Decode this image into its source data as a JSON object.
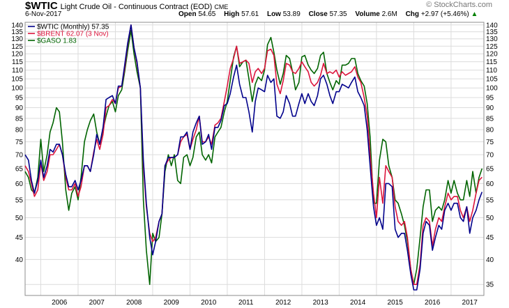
{
  "header": {
    "symbol": "$WTIC",
    "subtitle": "Light Crude Oil - Continuous Contract (EOD)",
    "exchange": "CME",
    "date": "6-Nov-2017",
    "open_label": "Open",
    "open_value": "54.65",
    "high_label": "High",
    "high_value": "57.61",
    "low_label": "Low",
    "low_value": "53.89",
    "close_label": "Close",
    "close_value": "57.35",
    "volume_label": "Volume",
    "volume_value": "2.6M",
    "chg_label": "Chg",
    "chg_value": "+2.97 (+5.46%)",
    "chg_arrow": "▲",
    "brand": "StockCharts.com",
    "brand_symbol": "©"
  },
  "colors": {
    "wtic": "#00008b",
    "brent": "#dc143c",
    "gaso": "#006400",
    "grid": "#dcdcdc",
    "frame": "#8c8c8c",
    "chg_arrow": "#008000"
  },
  "chart_data": {
    "type": "line",
    "scale": "log",
    "ylim": [
      33,
      142
    ],
    "grid": true,
    "legend_position": "top-left",
    "left_ticks": [
      40,
      45,
      50,
      55,
      60,
      65,
      70,
      75,
      80,
      85,
      90,
      95,
      100,
      105,
      110,
      115,
      120,
      125,
      130,
      135,
      140
    ],
    "right_ticks": [
      35,
      40,
      45,
      50,
      55,
      60,
      65,
      70,
      75,
      80,
      85,
      90,
      95,
      100,
      105,
      110,
      115,
      120,
      125,
      130,
      135,
      140
    ],
    "x_labels": [
      "2006",
      "2007",
      "2008",
      "2009",
      "2010",
      "2011",
      "2012",
      "2013",
      "2014",
      "2015",
      "2016",
      "2017"
    ],
    "x_range": [
      2005.58,
      2017.88
    ],
    "series": [
      {
        "name": "$WTIC (Monthly) 57.35",
        "color": "#00008b",
        "x": [
          2005.58,
          2005.67,
          2005.75,
          2005.83,
          2005.92,
          2006.0,
          2006.08,
          2006.17,
          2006.25,
          2006.33,
          2006.42,
          2006.5,
          2006.58,
          2006.67,
          2006.75,
          2006.83,
          2006.92,
          2007.0,
          2007.08,
          2007.17,
          2007.25,
          2007.33,
          2007.42,
          2007.5,
          2007.58,
          2007.67,
          2007.75,
          2007.83,
          2007.92,
          2008.0,
          2008.08,
          2008.17,
          2008.25,
          2008.33,
          2008.42,
          2008.5,
          2008.58,
          2008.67,
          2008.75,
          2008.83,
          2008.92,
          2009.0,
          2009.08,
          2009.17,
          2009.25,
          2009.33,
          2009.42,
          2009.5,
          2009.58,
          2009.67,
          2009.75,
          2009.83,
          2009.92,
          2010.0,
          2010.08,
          2010.17,
          2010.25,
          2010.33,
          2010.42,
          2010.5,
          2010.58,
          2010.67,
          2010.75,
          2010.83,
          2010.92,
          2011.0,
          2011.08,
          2011.17,
          2011.25,
          2011.33,
          2011.42,
          2011.5,
          2011.58,
          2011.67,
          2011.75,
          2011.83,
          2011.92,
          2012.0,
          2012.08,
          2012.17,
          2012.25,
          2012.33,
          2012.42,
          2012.5,
          2012.58,
          2012.67,
          2012.75,
          2012.83,
          2012.92,
          2013.0,
          2013.08,
          2013.17,
          2013.25,
          2013.33,
          2013.42,
          2013.5,
          2013.58,
          2013.67,
          2013.75,
          2013.83,
          2013.92,
          2014.0,
          2014.08,
          2014.17,
          2014.25,
          2014.33,
          2014.42,
          2014.5,
          2014.58,
          2014.67,
          2014.75,
          2014.83,
          2014.92,
          2015.0,
          2015.08,
          2015.17,
          2015.25,
          2015.33,
          2015.42,
          2015.5,
          2015.58,
          2015.67,
          2015.75,
          2015.83,
          2015.92,
          2016.0,
          2016.08,
          2016.17,
          2016.25,
          2016.33,
          2016.42,
          2016.5,
          2016.58,
          2016.67,
          2016.75,
          2016.83,
          2016.92,
          2017.0,
          2017.08,
          2017.17,
          2017.25,
          2017.33,
          2017.42,
          2017.5,
          2017.58,
          2017.67,
          2017.75,
          2017.83
        ],
        "values": [
          70.0,
          68.0,
          61.0,
          57.0,
          61.0,
          68.0,
          62.0,
          66.0,
          72.0,
          71.0,
          74.0,
          74.0,
          70.0,
          63.0,
          59.0,
          59.0,
          61.0,
          58.0,
          61.0,
          66.0,
          66.0,
          64.0,
          70.0,
          78.0,
          74.0,
          81.0,
          94.0,
          95.0,
          96.0,
          92.0,
          101.0,
          101.0,
          113.0,
          127.0,
          140.0,
          124.0,
          115.0,
          100.0,
          68.0,
          54.0,
          45.0,
          41.0,
          44.0,
          49.0,
          51.0,
          66.0,
          69.0,
          69.0,
          69.0,
          70.0,
          77.0,
          77.0,
          79.0,
          72.0,
          79.0,
          83.0,
          86.0,
          74.0,
          75.0,
          78.0,
          72.0,
          81.0,
          81.0,
          84.0,
          91.0,
          92.0,
          97.0,
          106.0,
          113.0,
          102.0,
          95.0,
          95.0,
          88.0,
          79.0,
          93.0,
          100.0,
          99.0,
          98.0,
          107.0,
          103.0,
          105.0,
          86.0,
          85.0,
          88.0,
          96.0,
          92.0,
          86.0,
          86.0,
          92.0,
          97.0,
          92.0,
          97.0,
          93.0,
          91.0,
          96.0,
          105.0,
          107.0,
          102.0,
          96.0,
          92.0,
          98.0,
          98.0,
          102.0,
          101.0,
          100.0,
          103.0,
          106.0,
          98.0,
          95.0,
          91.0,
          80.0,
          66.0,
          53.0,
          48.0,
          50.0,
          47.0,
          60.0,
          60.0,
          59.0,
          47.0,
          45.0,
          46.0,
          46.0,
          42.0,
          37.0,
          34.0,
          34.0,
          38.0,
          46.0,
          49.0,
          48.0,
          42.0,
          45.0,
          48.0,
          47.0,
          52.0,
          54.0,
          52.0,
          54.0,
          54.0,
          50.0,
          49.0,
          53.0,
          46.0,
          50.0,
          52.0,
          55.0,
          57.35
        ]
      },
      {
        "name": "$BRENT 62.07 (3 Nov)",
        "color": "#dc143c",
        "x": [
          2005.58,
          2005.67,
          2005.75,
          2005.83,
          2005.92,
          2006.0,
          2006.08,
          2006.17,
          2006.25,
          2006.33,
          2006.42,
          2006.5,
          2006.58,
          2006.67,
          2006.75,
          2006.83,
          2006.92,
          2007.0,
          2007.08,
          2007.17,
          2007.25,
          2007.33,
          2007.42,
          2007.5,
          2007.58,
          2007.67,
          2007.75,
          2007.83,
          2007.92,
          2008.0,
          2008.08,
          2008.17,
          2008.25,
          2008.33,
          2008.42,
          2008.5,
          2008.58,
          2008.67,
          2008.75,
          2008.83,
          2008.92,
          2009.0,
          2009.08,
          2009.17,
          2009.25,
          2009.33,
          2009.42,
          2009.5,
          2009.58,
          2009.67,
          2009.75,
          2009.83,
          2009.92,
          2010.0,
          2010.08,
          2010.17,
          2010.25,
          2010.33,
          2010.42,
          2010.5,
          2010.58,
          2010.67,
          2010.75,
          2010.83,
          2010.92,
          2011.0,
          2011.08,
          2011.17,
          2011.25,
          2011.33,
          2011.42,
          2011.5,
          2011.58,
          2011.67,
          2011.75,
          2011.83,
          2011.92,
          2012.0,
          2012.08,
          2012.17,
          2012.25,
          2012.33,
          2012.42,
          2012.5,
          2012.58,
          2012.67,
          2012.75,
          2012.83,
          2012.92,
          2013.0,
          2013.08,
          2013.17,
          2013.25,
          2013.33,
          2013.42,
          2013.5,
          2013.58,
          2013.67,
          2013.75,
          2013.83,
          2013.92,
          2014.0,
          2014.08,
          2014.17,
          2014.25,
          2014.33,
          2014.42,
          2014.5,
          2014.58,
          2014.67,
          2014.75,
          2014.83,
          2014.92,
          2015.0,
          2015.08,
          2015.17,
          2015.25,
          2015.33,
          2015.42,
          2015.5,
          2015.58,
          2015.67,
          2015.75,
          2015.83,
          2015.92,
          2016.0,
          2016.08,
          2016.17,
          2016.25,
          2016.33,
          2016.42,
          2016.5,
          2016.58,
          2016.67,
          2016.75,
          2016.83,
          2016.92,
          2017.0,
          2017.08,
          2017.17,
          2017.25,
          2017.33,
          2017.42,
          2017.5,
          2017.58,
          2017.67,
          2017.75,
          2017.83
        ],
        "values": [
          66.0,
          64.0,
          60.0,
          56.0,
          58.0,
          67.0,
          61.0,
          64.0,
          70.0,
          70.0,
          72.0,
          74.0,
          70.0,
          62.0,
          58.0,
          58.0,
          60.0,
          56.0,
          59.0,
          66.0,
          66.0,
          64.0,
          71.0,
          76.0,
          72.0,
          78.0,
          90.0,
          91.0,
          94.0,
          92.0,
          100.0,
          101.0,
          111.0,
          126.0,
          140.0,
          124.0,
          114.0,
          100.0,
          66.0,
          53.0,
          46.0,
          44.0,
          45.0,
          49.0,
          51.0,
          66.0,
          68.0,
          69.0,
          69.0,
          70.0,
          75.0,
          77.0,
          78.0,
          72.0,
          76.0,
          80.0,
          86.0,
          75.0,
          75.0,
          77.0,
          74.0,
          82.0,
          83.0,
          85.0,
          93.0,
          101.0,
          111.0,
          117.0,
          125.0,
          114.0,
          115.0,
          116.0,
          114.0,
          103.0,
          109.0,
          111.0,
          108.0,
          111.0,
          122.0,
          123.0,
          119.0,
          102.0,
          97.0,
          104.0,
          114.0,
          113.0,
          109.0,
          108.0,
          111.0,
          115.0,
          112.0,
          109.0,
          103.0,
          101.0,
          103.0,
          107.0,
          114.0,
          108.0,
          109.0,
          108.0,
          110.0,
          106.0,
          109.0,
          107.0,
          108.0,
          109.0,
          112.0,
          106.0,
          103.0,
          95.0,
          86.0,
          70.0,
          57.0,
          50.0,
          62.0,
          54.0,
          66.0,
          64.0,
          62.0,
          53.0,
          49.0,
          48.0,
          49.0,
          45.0,
          38.0,
          35.0,
          35.0,
          39.0,
          48.0,
          50.0,
          49.0,
          43.0,
          47.0,
          50.0,
          49.0,
          53.0,
          57.0,
          55.0,
          56.0,
          56.0,
          52.0,
          50.0,
          53.0,
          49.0,
          52.0,
          57.0,
          61.0,
          62.07
        ]
      },
      {
        "name": "$GASO 1.83",
        "color": "#006400",
        "x": [
          2005.58,
          2005.67,
          2005.75,
          2005.83,
          2005.92,
          2006.0,
          2006.08,
          2006.17,
          2006.25,
          2006.33,
          2006.42,
          2006.5,
          2006.58,
          2006.67,
          2006.75,
          2006.83,
          2006.92,
          2007.0,
          2007.08,
          2007.17,
          2007.25,
          2007.33,
          2007.42,
          2007.5,
          2007.58,
          2007.67,
          2007.75,
          2007.83,
          2007.92,
          2008.0,
          2008.08,
          2008.17,
          2008.25,
          2008.33,
          2008.42,
          2008.5,
          2008.58,
          2008.67,
          2008.75,
          2008.83,
          2008.92,
          2009.0,
          2009.08,
          2009.17,
          2009.25,
          2009.33,
          2009.42,
          2009.5,
          2009.58,
          2009.67,
          2009.75,
          2009.83,
          2009.92,
          2010.0,
          2010.08,
          2010.17,
          2010.25,
          2010.33,
          2010.42,
          2010.5,
          2010.58,
          2010.67,
          2010.75,
          2010.83,
          2010.92,
          2011.0,
          2011.08,
          2011.17,
          2011.25,
          2011.33,
          2011.42,
          2011.5,
          2011.58,
          2011.67,
          2011.75,
          2011.83,
          2011.92,
          2012.0,
          2012.08,
          2012.17,
          2012.25,
          2012.33,
          2012.42,
          2012.5,
          2012.58,
          2012.67,
          2012.75,
          2012.83,
          2012.92,
          2013.0,
          2013.08,
          2013.17,
          2013.25,
          2013.33,
          2013.42,
          2013.5,
          2013.58,
          2013.67,
          2013.75,
          2013.83,
          2013.92,
          2014.0,
          2014.08,
          2014.17,
          2014.25,
          2014.33,
          2014.42,
          2014.5,
          2014.58,
          2014.67,
          2014.75,
          2014.83,
          2014.92,
          2015.0,
          2015.08,
          2015.17,
          2015.25,
          2015.33,
          2015.42,
          2015.5,
          2015.58,
          2015.67,
          2015.75,
          2015.83,
          2015.92,
          2016.0,
          2016.08,
          2016.17,
          2016.25,
          2016.33,
          2016.42,
          2016.5,
          2016.58,
          2016.67,
          2016.75,
          2016.83,
          2016.92,
          2017.0,
          2017.08,
          2017.17,
          2017.25,
          2017.33,
          2017.42,
          2017.5,
          2017.58,
          2017.67,
          2017.75,
          2017.83
        ],
        "values": [
          64.0,
          62.0,
          58.0,
          57.0,
          62.0,
          76.0,
          64.0,
          70.0,
          79.0,
          83.0,
          90.0,
          88.0,
          75.0,
          58.0,
          52.0,
          57.0,
          59.0,
          55.0,
          62.0,
          75.0,
          80.0,
          84.0,
          87.0,
          79.0,
          74.0,
          80.0,
          86.0,
          91.0,
          93.0,
          88.0,
          96.0,
          99.0,
          109.0,
          122.0,
          136.0,
          120.0,
          109.0,
          100.0,
          55.0,
          42.0,
          35.0,
          46.0,
          44.0,
          45.0,
          51.0,
          64.0,
          70.0,
          66.0,
          70.0,
          61.0,
          60.0,
          69.0,
          70.0,
          66.0,
          69.0,
          77.0,
          79.0,
          70.0,
          68.0,
          70.0,
          67.0,
          77.0,
          79.0,
          81.0,
          88.0,
          93.0,
          104.0,
          118.0,
          125.0,
          112.0,
          115.0,
          116.0,
          105.0,
          93.0,
          102.0,
          106.0,
          104.0,
          110.0,
          126.0,
          131.0,
          121.0,
          110.0,
          102.0,
          108.0,
          119.0,
          117.0,
          109.0,
          99.0,
          103.0,
          118.0,
          119.0,
          113.0,
          110.0,
          108.0,
          111.0,
          119.0,
          121.0,
          108.0,
          103.0,
          99.0,
          104.0,
          102.0,
          113.0,
          113.0,
          114.0,
          117.0,
          117.0,
          108.0,
          104.0,
          101.0,
          92.0,
          77.0,
          54.0,
          54.0,
          68.0,
          76.0,
          75.0,
          66.0,
          62.0,
          55.0,
          54.0,
          51.0,
          48.0,
          44.0,
          38.0,
          35.0,
          38.0,
          45.0,
          53.0,
          58.0,
          58.0,
          49.0,
          52.0,
          53.0,
          52.0,
          55.0,
          61.0,
          57.0,
          61.0,
          57.0,
          55.0,
          55.0,
          61.0,
          56.0,
          64.0,
          57.0,
          62.0,
          65.0
        ]
      }
    ]
  }
}
